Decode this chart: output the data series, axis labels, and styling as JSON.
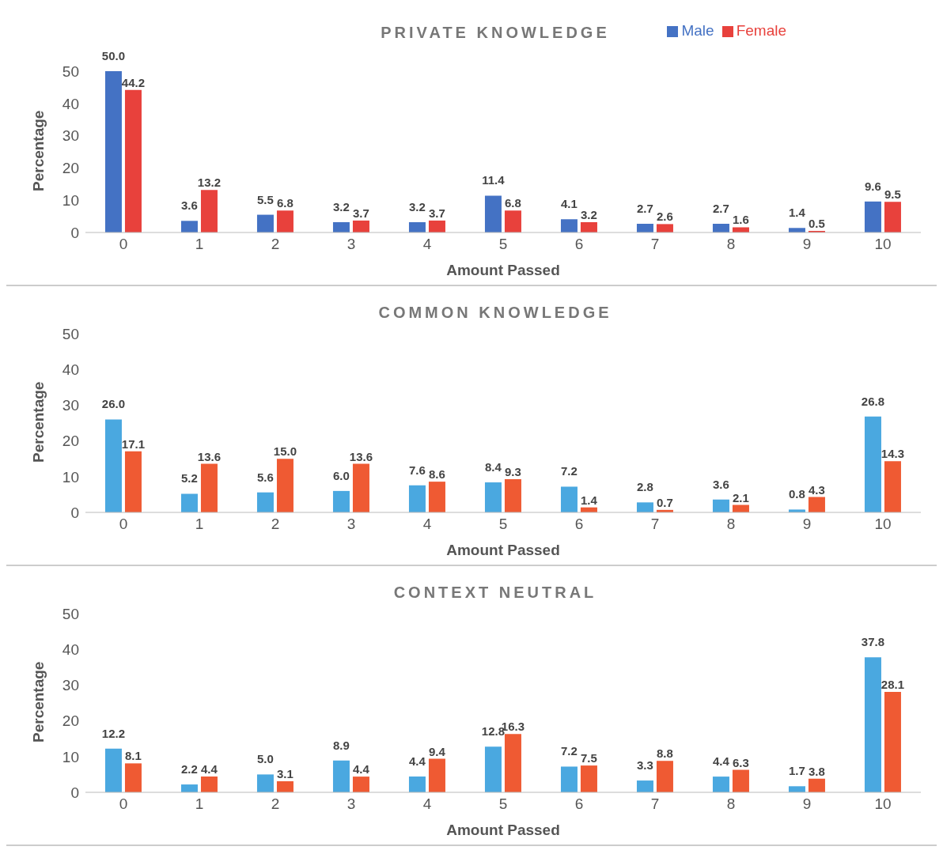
{
  "chart_data": [
    {
      "type": "bar",
      "title": "PRIVATE KNOWLEDGE",
      "xlabel": "Amount Passed",
      "ylabel": "Percentage",
      "categories": [
        "0",
        "1",
        "2",
        "3",
        "4",
        "5",
        "6",
        "7",
        "8",
        "9",
        "10"
      ],
      "ylim": [
        0,
        50
      ],
      "yticks": [
        0,
        10,
        20,
        30,
        40,
        50
      ],
      "legend": "top right",
      "series": [
        {
          "name": "Male",
          "color": "#4472c4",
          "values": [
            50.0,
            3.6,
            5.5,
            3.2,
            3.2,
            11.4,
            4.1,
            2.7,
            2.7,
            1.4,
            9.6
          ],
          "value_labels": [
            "50.0",
            "3.6",
            "5.5",
            "3.2",
            "3.2",
            "11.4",
            "4.1",
            "2.7",
            "2.7",
            "1.4",
            "9.6"
          ]
        },
        {
          "name": "Female",
          "color": "#e8413c",
          "values": [
            44.2,
            13.2,
            6.8,
            3.7,
            3.7,
            6.8,
            3.2,
            2.6,
            1.6,
            0.5,
            9.5
          ],
          "value_labels": [
            "44.2",
            "13.2",
            "6.8",
            "3.7",
            "3.7",
            "6.8",
            "3.2",
            "2.6",
            "1.6",
            "0.5",
            "9.5"
          ]
        }
      ]
    },
    {
      "type": "bar",
      "title": "COMMON KNOWLEDGE",
      "xlabel": "Amount Passed",
      "ylabel": "Percentage",
      "categories": [
        "0",
        "1",
        "2",
        "3",
        "4",
        "5",
        "6",
        "7",
        "8",
        "9",
        "10"
      ],
      "ylim": [
        0,
        50
      ],
      "yticks": [
        0,
        10,
        20,
        30,
        40,
        50
      ],
      "series": [
        {
          "color": "#4aa8e0",
          "values": [
            26.0,
            5.2,
            5.6,
            6.0,
            7.6,
            8.4,
            7.2,
            2.8,
            3.6,
            0.8,
            26.8
          ],
          "value_labels": [
            "26.0",
            "5.2",
            "5.6",
            "6.0",
            "7.6",
            "8.4",
            "7.2",
            "2.8",
            "3.6",
            "0.8",
            "26.8"
          ]
        },
        {
          "color": "#ef5a33",
          "values": [
            17.1,
            13.6,
            15.0,
            13.6,
            8.6,
            9.3,
            1.4,
            0.7,
            2.1,
            4.3,
            14.3
          ],
          "value_labels": [
            "17.1",
            "13.6",
            "15.0",
            "13.6",
            "8.6",
            "9.3",
            "1.4",
            "0.7",
            "2.1",
            "4.3",
            "14.3"
          ]
        }
      ]
    },
    {
      "type": "bar",
      "title": "CONTEXT NEUTRAL",
      "xlabel": "Amount Passed",
      "ylabel": "Percentage",
      "categories": [
        "0",
        "1",
        "2",
        "3",
        "4",
        "5",
        "6",
        "7",
        "8",
        "9",
        "10"
      ],
      "ylim": [
        0,
        50
      ],
      "yticks": [
        0,
        10,
        20,
        30,
        40,
        50
      ],
      "series": [
        {
          "color": "#4aa8e0",
          "values": [
            12.2,
            2.2,
            5.0,
            8.9,
            4.4,
            12.8,
            7.2,
            3.3,
            4.4,
            1.7,
            37.8
          ],
          "value_labels": [
            "12.2",
            "2.2",
            "5.0",
            "8.9",
            "4.4",
            "12.8",
            "7.2",
            "3.3",
            "4.4",
            "1.7",
            "37.8"
          ]
        },
        {
          "color": "#ef5a33",
          "values": [
            8.1,
            4.4,
            3.1,
            4.4,
            9.4,
            16.3,
            7.5,
            8.8,
            6.3,
            3.8,
            28.1
          ],
          "value_labels": [
            "8.1",
            "4.4",
            "3.1",
            "4.4",
            "9.4",
            "16.3",
            "7.5",
            "8.8",
            "6.3",
            "3.8",
            "28.1"
          ]
        }
      ]
    }
  ]
}
